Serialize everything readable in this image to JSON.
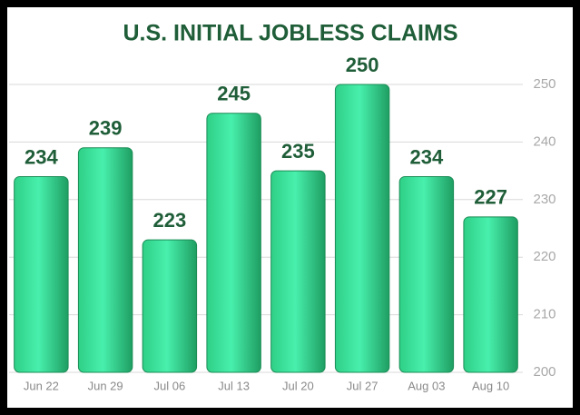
{
  "chart_data": {
    "type": "bar",
    "title": "U.S. INITIAL JOBLESS CLAIMS",
    "categories": [
      "Jun 22",
      "Jun 29",
      "Jul 06",
      "Jul 13",
      "Jul 20",
      "Jul 27",
      "Aug 03",
      "Aug 10"
    ],
    "values": [
      234,
      239,
      223,
      245,
      235,
      250,
      234,
      227
    ],
    "color": "#3fe6a0",
    "ylim": [
      200,
      250
    ],
    "yticks": [
      200,
      210,
      220,
      230,
      240,
      250
    ],
    "grid": true
  }
}
